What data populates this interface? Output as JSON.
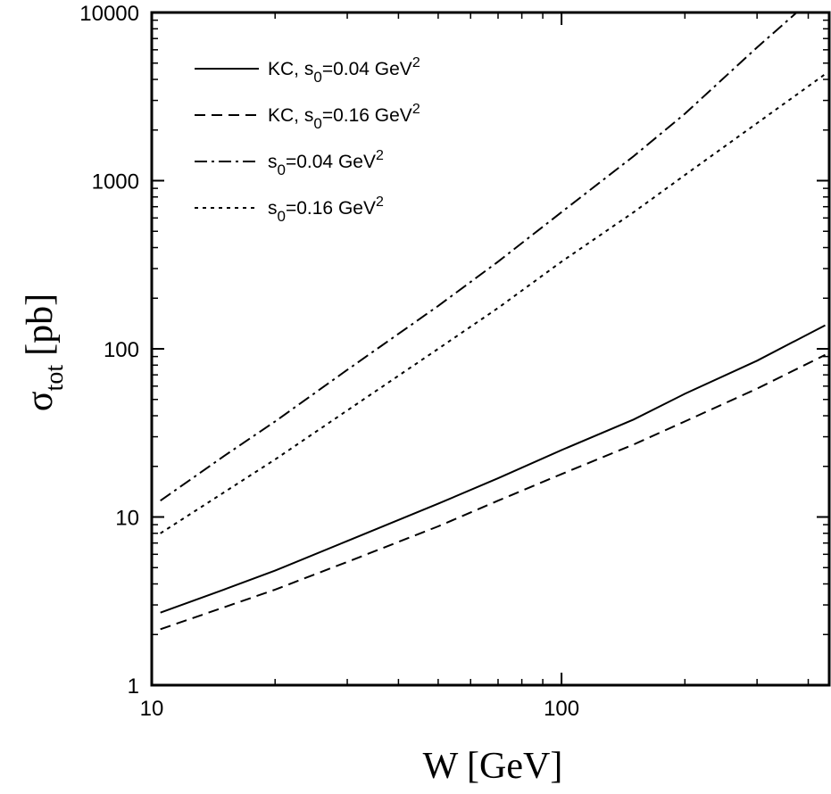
{
  "chart_data": {
    "type": "line",
    "xlabel": "W [GeV]",
    "ylabel": {
      "symbol": "σ",
      "sub": "tot",
      "unit": "[pb]"
    },
    "xscale": "log",
    "yscale": "log",
    "xlim": [
      10,
      450
    ],
    "ylim": [
      1,
      10000
    ],
    "x_ticks": [
      "10",
      "100"
    ],
    "y_ticks": [
      "1",
      "10",
      "100",
      "1000",
      "10000"
    ],
    "grid": false,
    "legend_position": "top-left",
    "series": [
      {
        "name": {
          "pre": "KC, ",
          "s": "s",
          "sub": "0",
          "val": "=0.04 GeV",
          "sup": "2"
        },
        "style": "solid",
        "points": [
          [
            10.5,
            2.7
          ],
          [
            15,
            3.7
          ],
          [
            20,
            4.8
          ],
          [
            30,
            7.2
          ],
          [
            50,
            12
          ],
          [
            70,
            17
          ],
          [
            100,
            25
          ],
          [
            150,
            38
          ],
          [
            200,
            54
          ],
          [
            300,
            85
          ],
          [
            440,
            138
          ]
        ]
      },
      {
        "name": {
          "pre": "KC, ",
          "s": "s",
          "sub": "0",
          "val": "=0.16 GeV",
          "sup": "2"
        },
        "style": "dashed",
        "points": [
          [
            10.5,
            2.15
          ],
          [
            15,
            2.9
          ],
          [
            20,
            3.7
          ],
          [
            30,
            5.4
          ],
          [
            50,
            8.8
          ],
          [
            70,
            12.5
          ],
          [
            100,
            18
          ],
          [
            150,
            27
          ],
          [
            200,
            37
          ],
          [
            300,
            58
          ],
          [
            440,
            92
          ]
        ]
      },
      {
        "name": {
          "pre": "",
          "s": "s",
          "sub": "0",
          "val": "=0.04 GeV",
          "sup": "2"
        },
        "style": "dashdot",
        "points": [
          [
            10.5,
            12.5
          ],
          [
            15,
            23
          ],
          [
            20,
            37
          ],
          [
            30,
            75
          ],
          [
            50,
            180
          ],
          [
            70,
            330
          ],
          [
            100,
            650
          ],
          [
            150,
            1400
          ],
          [
            200,
            2500
          ],
          [
            300,
            6200
          ],
          [
            375,
            10000
          ]
        ]
      },
      {
        "name": {
          "pre": "",
          "s": "s",
          "sub": "0",
          "val": "=0.16 GeV",
          "sup": "2"
        },
        "style": "dotted",
        "points": [
          [
            10.5,
            8
          ],
          [
            15,
            14
          ],
          [
            20,
            22
          ],
          [
            30,
            43
          ],
          [
            50,
            100
          ],
          [
            70,
            175
          ],
          [
            100,
            330
          ],
          [
            150,
            650
          ],
          [
            200,
            1080
          ],
          [
            300,
            2200
          ],
          [
            440,
            4300
          ]
        ]
      }
    ]
  }
}
